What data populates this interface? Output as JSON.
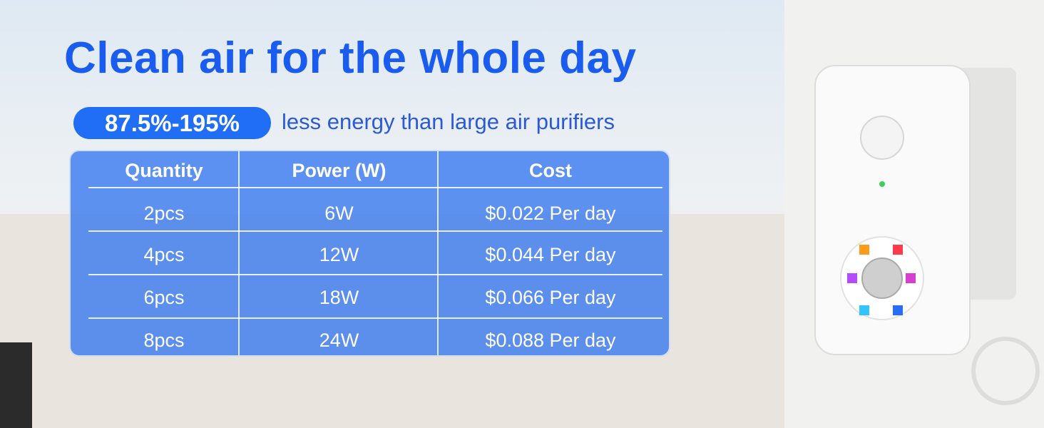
{
  "header": {
    "title": "Clean air for the whole day",
    "badge": "87.5%-195%",
    "tagline": "less energy than  large air purifiers"
  },
  "table": {
    "columns": [
      "Quantity",
      "Power (W)",
      "Cost"
    ],
    "rows": [
      [
        "2pcs",
        "6W",
        "$0.022 Per day"
      ],
      [
        "4pcs",
        "12W",
        "$0.044 Per day"
      ],
      [
        "6pcs",
        "18W",
        "$0.066 Per day"
      ],
      [
        "8pcs",
        "24W",
        "$0.088 Per day"
      ]
    ]
  }
}
